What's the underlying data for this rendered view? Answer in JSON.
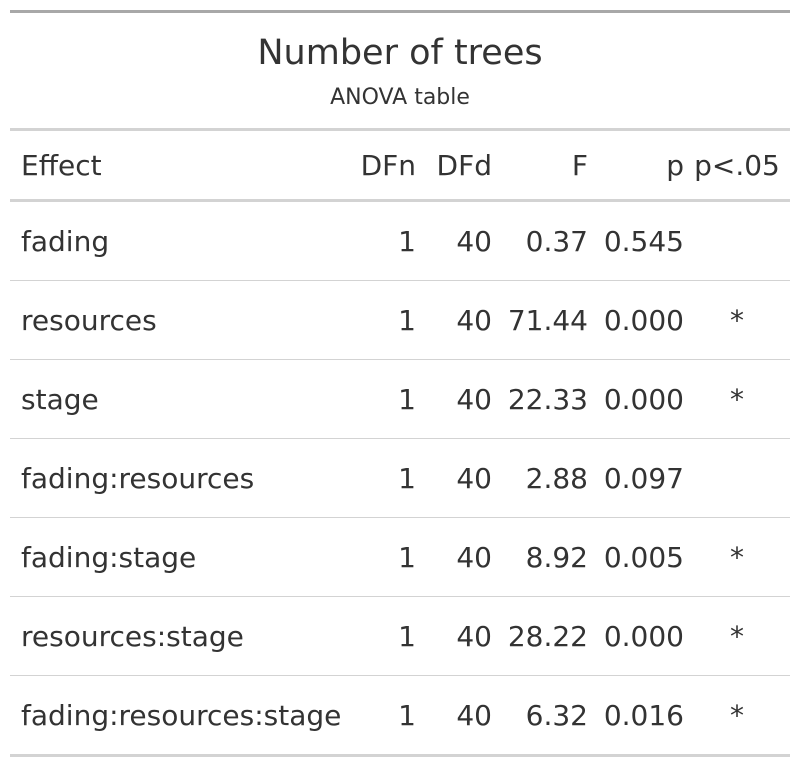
{
  "table": {
    "title": "Number of trees",
    "subtitle": "ANOVA table",
    "columns": [
      "Effect",
      "DFn",
      "DFd",
      "F",
      "p",
      "p<.05"
    ],
    "rows": [
      [
        "fading",
        "1",
        "40",
        "0.37",
        "0.545",
        ""
      ],
      [
        "resources",
        "1",
        "40",
        "71.44",
        "0.000",
        "*"
      ],
      [
        "stage",
        "1",
        "40",
        "22.33",
        "0.000",
        "*"
      ],
      [
        "fading:resources",
        "1",
        "40",
        "2.88",
        "0.097",
        ""
      ],
      [
        "fading:stage",
        "1",
        "40",
        "8.92",
        "0.005",
        "*"
      ],
      [
        "resources:stage",
        "1",
        "40",
        "28.22",
        "0.000",
        "*"
      ],
      [
        "fading:resources:stage",
        "1",
        "40",
        "6.32",
        "0.016",
        "*"
      ]
    ]
  }
}
